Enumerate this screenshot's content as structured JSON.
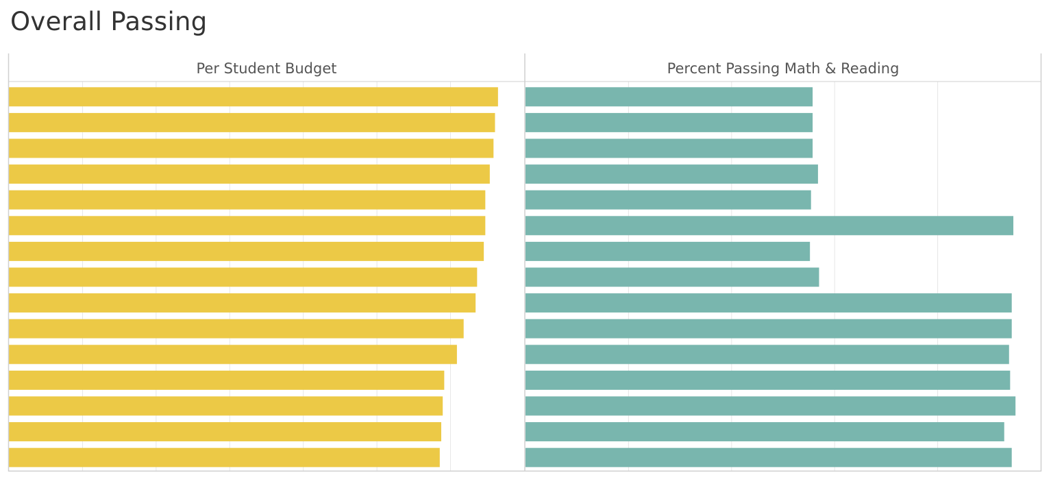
{
  "title": "Overall Passing",
  "colors": {
    "budget": "#ecc946",
    "passing": "#79b6ae",
    "grid": "#e6e6e6",
    "border": "#cfcfcf"
  },
  "chart_data": [
    {
      "type": "bar",
      "orientation": "horizontal",
      "title": "Per Student Budget",
      "xlim": [
        0,
        690
      ],
      "grid": true,
      "values": [
        655,
        651,
        649,
        644,
        638,
        638,
        636,
        627,
        625,
        609,
        600,
        583,
        581,
        579,
        577
      ]
    },
    {
      "type": "bar",
      "orientation": "horizontal",
      "title": "Percent Passing Math & Reading",
      "xlim": [
        0,
        96
      ],
      "grid": true,
      "values": [
        53.5,
        53.5,
        53.5,
        54.5,
        53.2,
        90.9,
        53.0,
        54.7,
        90.6,
        90.6,
        90.1,
        90.3,
        91.3,
        89.2,
        90.6
      ]
    }
  ]
}
